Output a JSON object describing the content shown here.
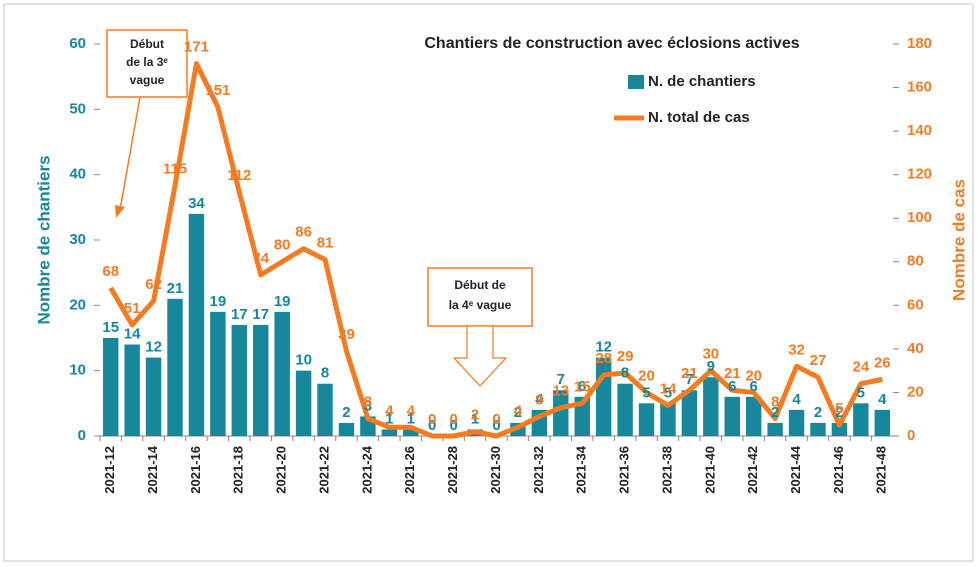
{
  "chart_data": {
    "type": "bar_line",
    "title": "Chantiers de construction avec éclosions actives",
    "y_label": "Nombre de chantiers",
    "y2_label": "Nombre de cas",
    "categories": [
      "2021-12",
      null,
      "2021-14",
      null,
      "2021-16",
      null,
      "2021-18",
      null,
      "2021-20",
      null,
      "2021-22",
      null,
      "2021-24",
      null,
      "2021-26",
      null,
      "2021-28",
      null,
      "2021-30",
      null,
      "2021-32",
      null,
      "2021-34",
      null,
      "2021-36",
      null,
      "2021-38",
      null,
      "2021-40",
      null,
      "2021-42",
      null,
      "2021-44",
      null,
      "2021-46",
      null,
      "2021-48"
    ],
    "series": [
      {
        "name": "N. de chantiers",
        "color": "#17879b",
        "type": "bar",
        "values": [
          15,
          14,
          12,
          21,
          34,
          19,
          17,
          17,
          19,
          10,
          8,
          2,
          3,
          1,
          1,
          0,
          0,
          1,
          0,
          2,
          4,
          7,
          6,
          12,
          8,
          5,
          5,
          7,
          9,
          6,
          6,
          2,
          4,
          2,
          2,
          5,
          4
        ]
      },
      {
        "name": "N. total de cas",
        "color": "#f47b20",
        "type": "line",
        "axis": "y2",
        "values": [
          68,
          51,
          62,
          115,
          171,
          151,
          112,
          74,
          80,
          86,
          81,
          39,
          8,
          4,
          4,
          0,
          0,
          2,
          0,
          4,
          9,
          13,
          15,
          28,
          29,
          20,
          14,
          21,
          30,
          21,
          20,
          8,
          32,
          27,
          5,
          24,
          26
        ]
      }
    ],
    "ylim": [
      0,
      60
    ],
    "yticks": [
      0,
      10,
      20,
      30,
      40,
      50,
      60
    ],
    "y2lim": [
      0,
      180
    ],
    "y2ticks": [
      0,
      20,
      40,
      60,
      80,
      100,
      120,
      140,
      160,
      180
    ],
    "annotations": [
      {
        "lines": [
          "Début",
          "de la 3ᵉ",
          "vague"
        ]
      },
      {
        "lines": [
          "Début de",
          "la 4ᵉ vague"
        ]
      }
    ]
  }
}
